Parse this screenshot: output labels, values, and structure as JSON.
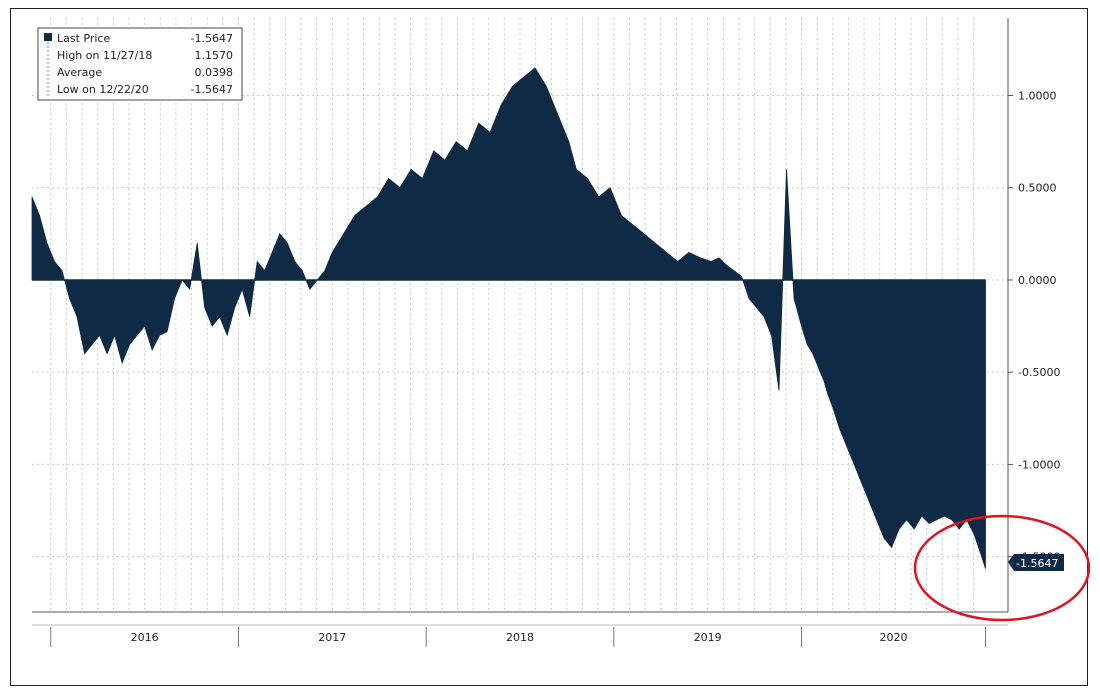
{
  "chart_data": {
    "type": "area",
    "title": "",
    "xlabel": "",
    "ylabel": "",
    "ylim": [
      -1.8,
      1.42
    ],
    "yticks": [
      1.0,
      0.5,
      0.0,
      -0.5,
      -1.0,
      -1.5
    ],
    "ytick_labels": [
      "1.0000",
      "0.5000",
      "0.0000",
      "-0.5000",
      "-1.0000",
      "-1.5000"
    ],
    "x_categories": [
      "2016",
      "2017",
      "2018",
      "2019",
      "2020"
    ],
    "xlim": [
      2015.9,
      2021.1
    ],
    "legend": [
      {
        "label": "Last Price",
        "value": "-1.5647"
      },
      {
        "label": "High on 11/27/18",
        "value": "1.1570"
      },
      {
        "label": "Average",
        "value": "0.0398"
      },
      {
        "label": "Low on 12/22/20",
        "value": "-1.5647"
      }
    ],
    "last_value_label": "-1.5647",
    "series": [
      {
        "name": "Last Price",
        "x": [
          2015.9,
          2015.94,
          2015.98,
          2016.02,
          2016.06,
          2016.1,
          2016.14,
          2016.18,
          2016.22,
          2016.26,
          2016.3,
          2016.34,
          2016.38,
          2016.42,
          2016.46,
          2016.5,
          2016.54,
          2016.58,
          2016.62,
          2016.66,
          2016.7,
          2016.74,
          2016.78,
          2016.82,
          2016.86,
          2016.9,
          2016.94,
          2016.98,
          2017.02,
          2017.06,
          2017.1,
          2017.14,
          2017.18,
          2017.22,
          2017.26,
          2017.3,
          2017.34,
          2017.38,
          2017.42,
          2017.46,
          2017.5,
          2017.56,
          2017.62,
          2017.68,
          2017.74,
          2017.8,
          2017.86,
          2017.92,
          2017.98,
          2018.04,
          2018.1,
          2018.16,
          2018.22,
          2018.28,
          2018.34,
          2018.4,
          2018.46,
          2018.52,
          2018.58,
          2018.64,
          2018.7,
          2018.76,
          2018.8,
          2018.86,
          2018.92,
          2018.98,
          2019.04,
          2019.1,
          2019.16,
          2019.22,
          2019.28,
          2019.34,
          2019.4,
          2019.46,
          2019.52,
          2019.56,
          2019.6,
          2019.64,
          2019.68,
          2019.72,
          2019.76,
          2019.8,
          2019.84,
          2019.88,
          2019.92,
          2019.96,
          2020.0,
          2020.03,
          2020.06,
          2020.08,
          2020.1,
          2020.12,
          2020.14,
          2020.17,
          2020.2,
          2020.24,
          2020.28,
          2020.32,
          2020.36,
          2020.4,
          2020.44,
          2020.48,
          2020.52,
          2020.56,
          2020.6,
          2020.64,
          2020.68,
          2020.72,
          2020.76,
          2020.8,
          2020.84,
          2020.88,
          2020.92,
          2020.96,
          2020.98
        ],
        "values": [
          0.45,
          0.35,
          0.2,
          0.1,
          0.05,
          -0.1,
          -0.2,
          -0.4,
          -0.35,
          -0.3,
          -0.4,
          -0.3,
          -0.45,
          -0.35,
          -0.3,
          -0.25,
          -0.38,
          -0.3,
          -0.28,
          -0.1,
          0.0,
          -0.05,
          0.2,
          -0.15,
          -0.25,
          -0.2,
          -0.3,
          -0.15,
          -0.05,
          -0.2,
          0.1,
          0.05,
          0.15,
          0.25,
          0.2,
          0.1,
          0.05,
          -0.05,
          0.0,
          0.05,
          0.15,
          0.25,
          0.35,
          0.4,
          0.45,
          0.55,
          0.5,
          0.6,
          0.55,
          0.7,
          0.65,
          0.75,
          0.7,
          0.85,
          0.8,
          0.95,
          1.05,
          1.1,
          1.15,
          1.05,
          0.9,
          0.75,
          0.6,
          0.55,
          0.45,
          0.5,
          0.35,
          0.3,
          0.25,
          0.2,
          0.15,
          0.1,
          0.15,
          0.12,
          0.1,
          0.12,
          0.08,
          0.05,
          0.02,
          -0.1,
          -0.15,
          -0.2,
          -0.3,
          -0.6,
          0.6,
          -0.1,
          -0.25,
          -0.35,
          -0.4,
          -0.45,
          -0.5,
          -0.55,
          -0.62,
          -0.7,
          -0.8,
          -0.9,
          -1.0,
          -1.1,
          -1.2,
          -1.3,
          -1.4,
          -1.45,
          -1.35,
          -1.3,
          -1.35,
          -1.28,
          -1.32,
          -1.3,
          -1.28,
          -1.3,
          -1.35,
          -1.3,
          -1.38,
          -1.5,
          -1.5647
        ]
      }
    ]
  }
}
